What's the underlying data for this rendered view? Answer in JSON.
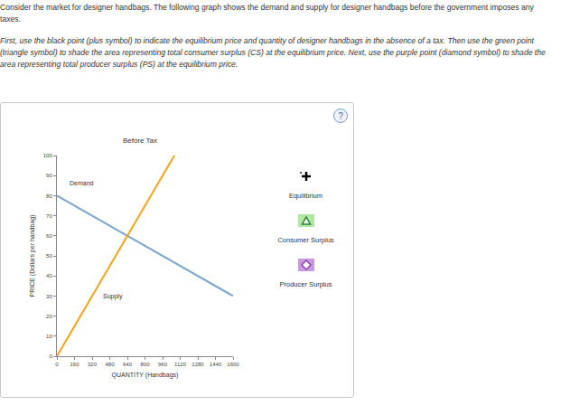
{
  "instructions": [
    "Consider the market for designer handbags. The following graph shows the demand and supply for designer handbags before the government imposes any taxes.",
    "First, use the black point (plus symbol) to indicate the equilibrium price and quantity of designer handbags in the absence of a tax. Then use the green point (triangle symbol) to shade the area representing total consumer surplus (CS) at the equilibrium price. Next, use the purple point (diamond symbol) to shade the area representing total producer surplus (PS) at the equilibrium price."
  ],
  "help": "?",
  "tools": [
    {
      "label": "Equilibrium",
      "marker": "cross",
      "color": "#000000"
    },
    {
      "label": "Consumer Surplus",
      "marker": "triangle",
      "color": "#2e7d32"
    },
    {
      "label": "Producer Surplus",
      "marker": "diamond",
      "color": "#8e44ad"
    }
  ],
  "chart_data": {
    "type": "line",
    "title": "Before Tax",
    "x_label": "QUANTITY (Handbags)",
    "y_label": "PRICE (Dollars per handbag)",
    "xlim": [
      0,
      1600
    ],
    "ylim": [
      0,
      100
    ],
    "xticks": [
      0,
      160,
      320,
      480,
      640,
      800,
      960,
      1120,
      1280,
      1440,
      1600
    ],
    "yticks": [
      0,
      10,
      20,
      30,
      40,
      50,
      60,
      70,
      80,
      90,
      100
    ],
    "grid": false,
    "series": [
      {
        "name": "Demand",
        "color": "#7aa6cc",
        "x": [
          0,
          1600
        ],
        "values": [
          80,
          30
        ]
      },
      {
        "name": "Supply",
        "color": "#f5a31a",
        "x": [
          0,
          1067
        ],
        "values": [
          0,
          100
        ]
      }
    ],
    "annotations": [
      {
        "text": "Demand",
        "x": 100,
        "y": 84
      },
      {
        "text": "Supply",
        "x": 400,
        "y": 27
      }
    ]
  }
}
